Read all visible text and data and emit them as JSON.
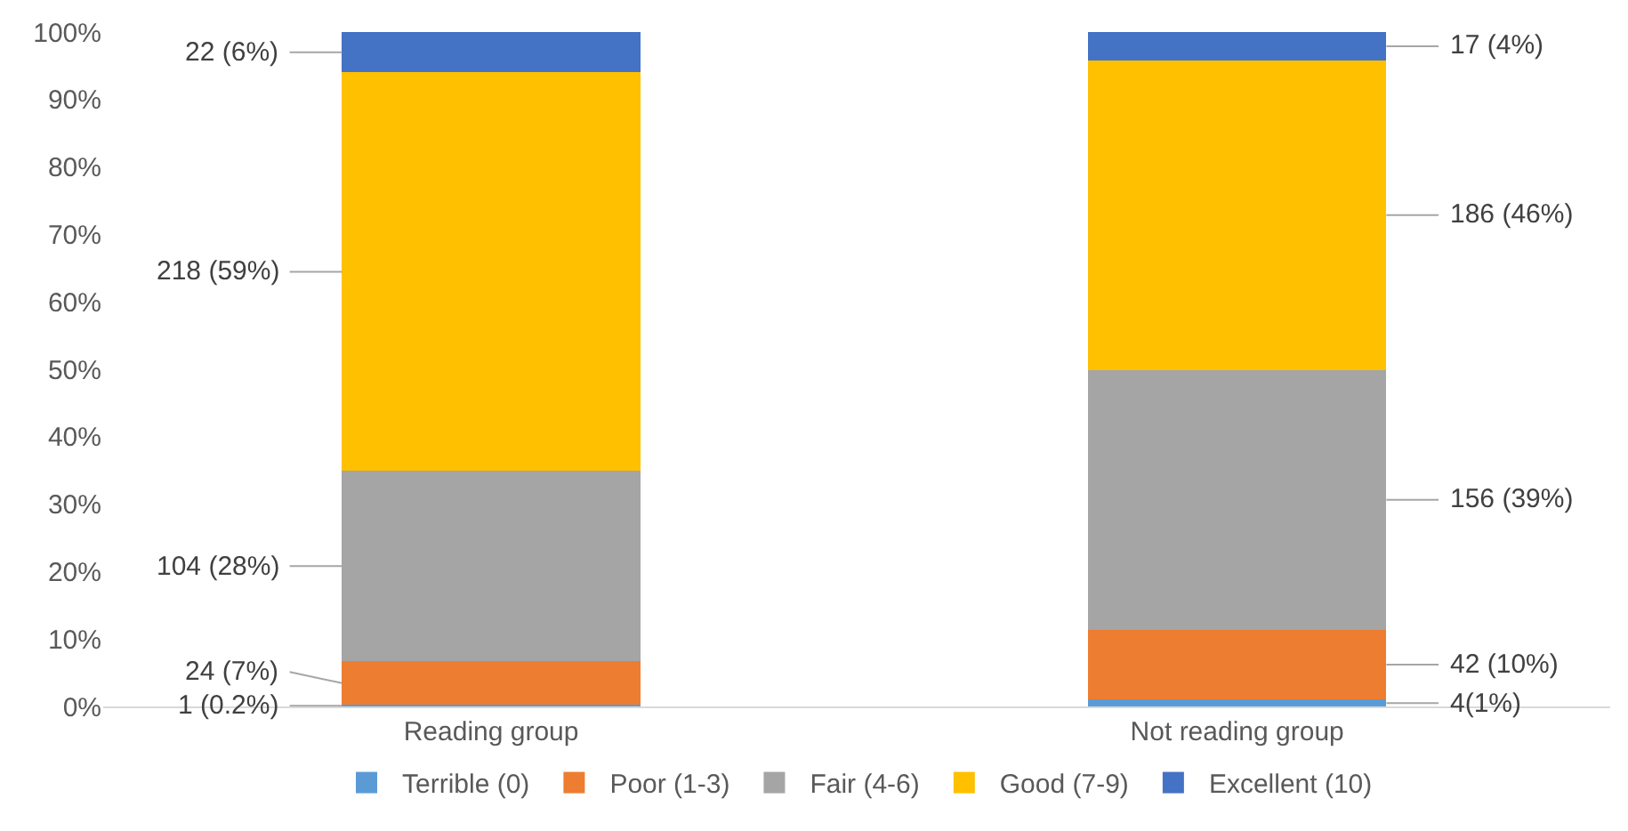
{
  "chart_data": {
    "type": "bar",
    "stacked": true,
    "categories": [
      "Reading group",
      "Not reading group"
    ],
    "series": [
      {
        "name": "Terrible (0)",
        "color": "#5b9bd5",
        "values": [
          0.2,
          1.0
        ],
        "value_labels": [
          "1 (0.2%)",
          "4(1%)"
        ]
      },
      {
        "name": "Poor (1-3)",
        "color": "#ed7d31",
        "values": [
          6.5,
          10.4
        ],
        "value_labels": [
          "24 (7%)",
          "42 (10%)"
        ]
      },
      {
        "name": "Fair (4-6)",
        "color": "#a5a5a5",
        "values": [
          28.2,
          38.5
        ],
        "value_labels": [
          "104 (28%)",
          "156 (39%)"
        ]
      },
      {
        "name": "Good (7-9)",
        "color": "#ffc000",
        "values": [
          59.1,
          45.9
        ],
        "value_labels": [
          "218 (59%)",
          "186 (46%)"
        ]
      },
      {
        "name": "Excellent (10)",
        "color": "#4472c4",
        "values": [
          6.0,
          4.2
        ],
        "value_labels": [
          "22 (6%)",
          "17 (4%)"
        ]
      }
    ],
    "ylim": [
      0,
      100
    ],
    "yticks": [
      {
        "value": 0,
        "label": "0%"
      },
      {
        "value": 10,
        "label": "10%"
      },
      {
        "value": 20,
        "label": "20%"
      },
      {
        "value": 30,
        "label": "30%"
      },
      {
        "value": 40,
        "label": "40%"
      },
      {
        "value": 50,
        "label": "50%"
      },
      {
        "value": 60,
        "label": "60%"
      },
      {
        "value": 70,
        "label": "70%"
      },
      {
        "value": 80,
        "label": "80%"
      },
      {
        "value": 90,
        "label": "90%"
      },
      {
        "value": 100,
        "label": "100%"
      }
    ],
    "grid": false,
    "legend": "bottom"
  }
}
